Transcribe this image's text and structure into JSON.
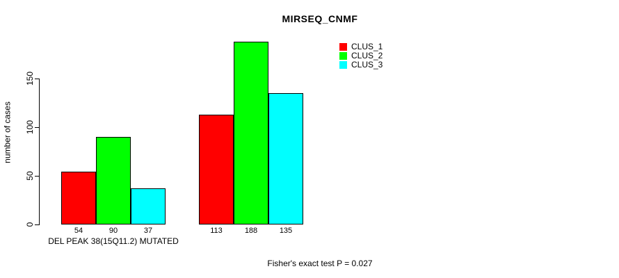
{
  "chart_data": {
    "type": "bar",
    "title": "MIRSEQ_CNMF",
    "ylabel": "number of cases",
    "xlabel": "DEL PEAK 38(15Q11.2) MUTATED",
    "yticks": [
      0,
      50,
      100,
      150
    ],
    "ylim": [
      0,
      210
    ],
    "grid": false,
    "legend_position": "top-right",
    "series": [
      {
        "name": "CLUS_1",
        "color": "#ff0000"
      },
      {
        "name": "CLUS_2",
        "color": "#00ff00"
      },
      {
        "name": "CLUS_3",
        "color": "#00ffff"
      }
    ],
    "groups": [
      {
        "label": "DEL PEAK 38(15Q11.2) MUTATED",
        "values": [
          54,
          90,
          37
        ]
      },
      {
        "label": "",
        "values": [
          113,
          188,
          135
        ]
      }
    ],
    "annotation": "Fisher's exact test P = 0.027"
  }
}
